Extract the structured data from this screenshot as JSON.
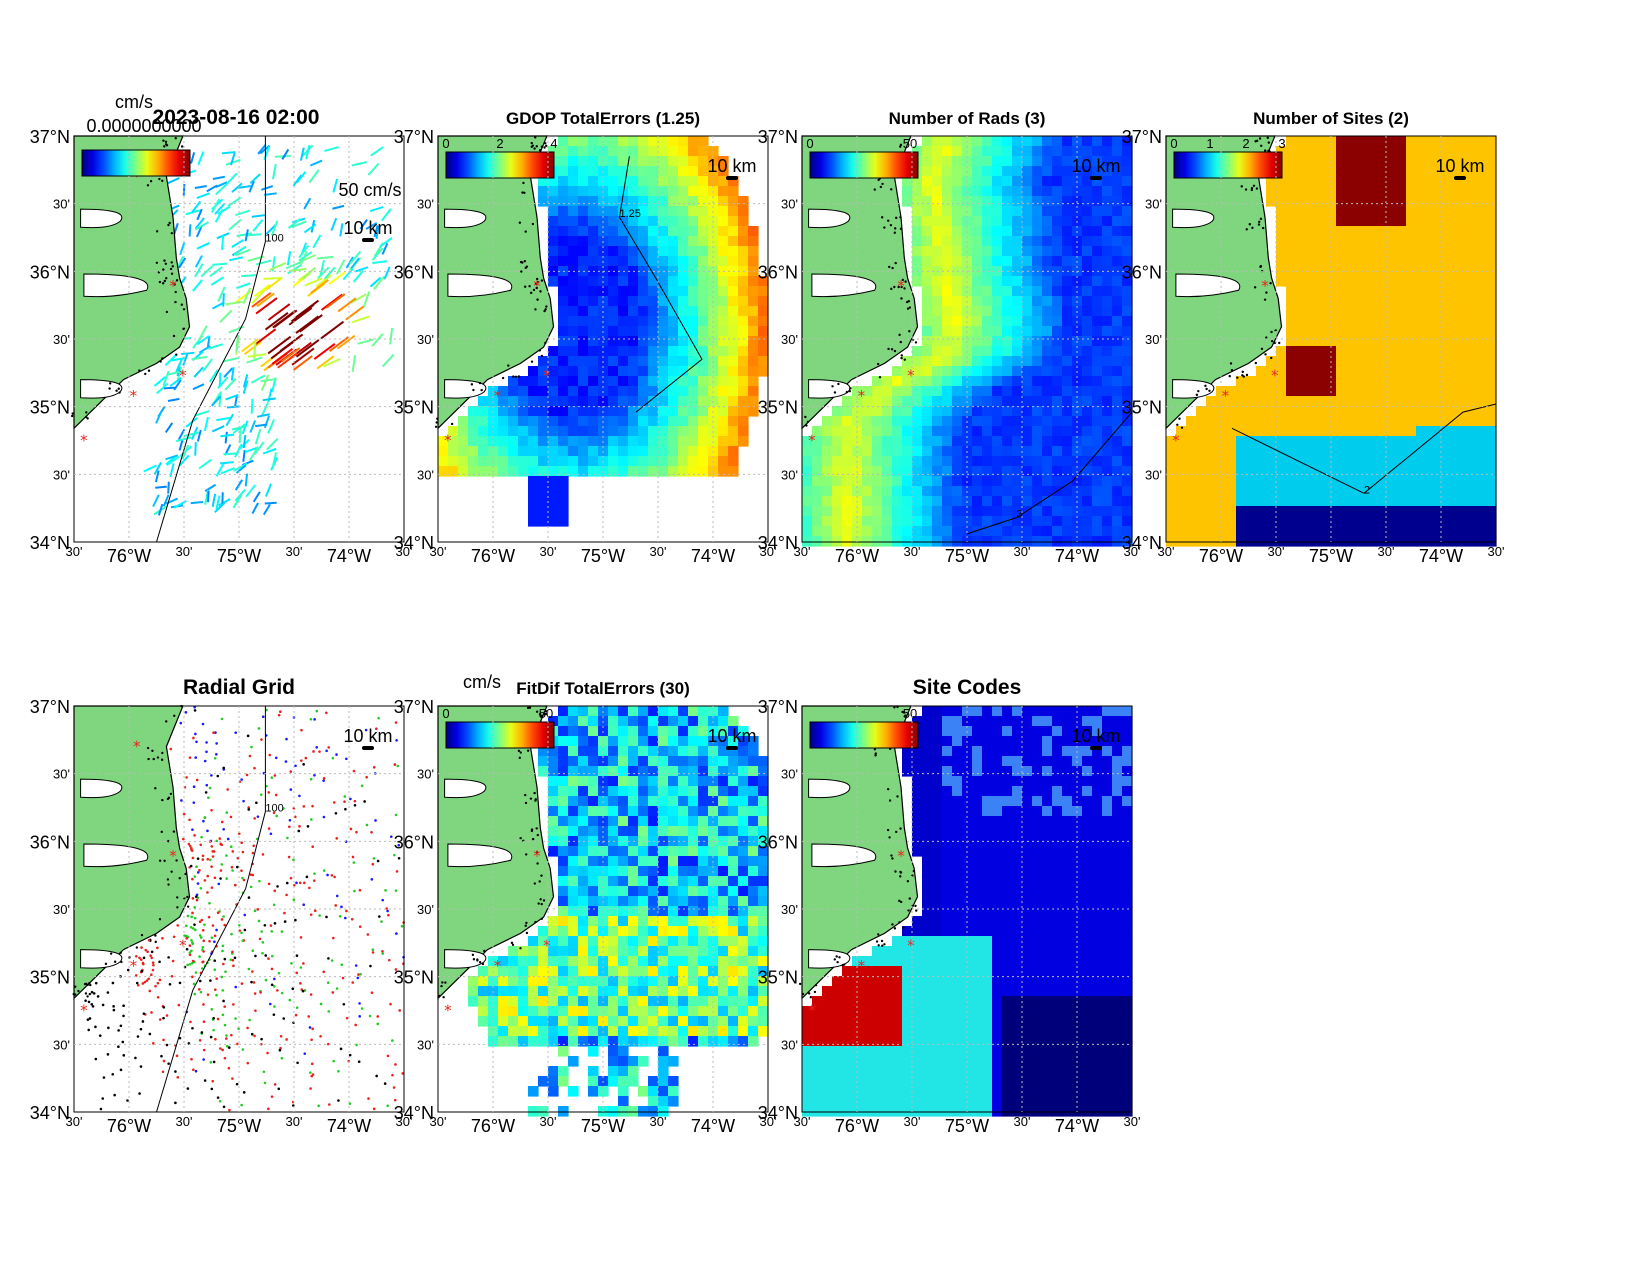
{
  "figure": {
    "timestamp": "2023-08-16 02:00",
    "lat_ticks": [
      "37°N",
      "30'",
      "36°N",
      "30'",
      "35°N",
      "30'",
      "34°N"
    ],
    "lon_ticks": [
      "30'",
      "76°W",
      "30'",
      "75°W",
      "30'",
      "74°W",
      "30'"
    ],
    "scale_bar": "10 km",
    "units": "cm/s",
    "overlapped_text": "0.0000000000"
  },
  "panels": [
    {
      "id": "vectors",
      "title": "",
      "cbar_ticks": [],
      "vector_scale": "50 cm/s",
      "contour": "100"
    },
    {
      "id": "gdop",
      "title": "GDOP TotalErrors (1.25)",
      "cbar_ticks": [
        "0",
        "2",
        "4"
      ],
      "contour": "1.25"
    },
    {
      "id": "rads",
      "title": "Number of Rads (3)",
      "cbar_ticks": [
        "0",
        "50"
      ],
      "contour": "3"
    },
    {
      "id": "sites",
      "title": "Number of Sites (2)",
      "cbar_ticks": [
        "0",
        "1",
        "2",
        "3"
      ],
      "contour": "2"
    },
    {
      "id": "radial",
      "title": "Radial Grid",
      "cbar_ticks": [],
      "contour": "100"
    },
    {
      "id": "fitdif",
      "title": "FitDif TotalErrors (30)",
      "cbar_ticks": [
        "0",
        "50"
      ],
      "contour": "30"
    },
    {
      "id": "codes",
      "title": "Site Codes",
      "cbar_ticks": [
        "50"
      ],
      "contour": ""
    }
  ],
  "colors": {
    "land": "#7fd67f",
    "site_marker": "#e8231c",
    "grid_dots": [
      "#e8231c",
      "#1a1aff",
      "#22cc22",
      "#000000"
    ]
  }
}
